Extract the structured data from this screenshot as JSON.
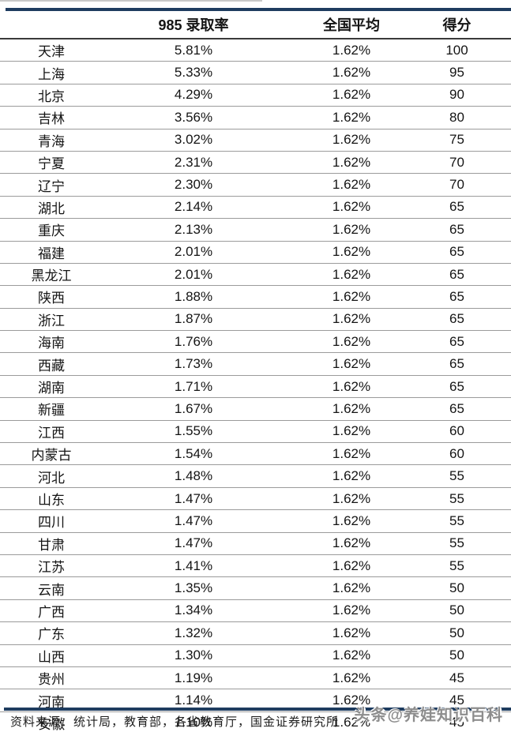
{
  "colors": {
    "accent_rule": "#1e3c5f",
    "header_divider": "#3a3a3a",
    "row_divider": "#9b9b9b",
    "text": "#141414",
    "watermark": "#8d8d8d"
  },
  "chart_data": {
    "type": "table",
    "columns": [
      "",
      "985 录取率",
      "全国平均",
      "得分"
    ],
    "rows": [
      {
        "province": "天津",
        "rate": "5.81%",
        "avg": "1.62%",
        "score": "100"
      },
      {
        "province": "上海",
        "rate": "5.33%",
        "avg": "1.62%",
        "score": "95"
      },
      {
        "province": "北京",
        "rate": "4.29%",
        "avg": "1.62%",
        "score": "90"
      },
      {
        "province": "吉林",
        "rate": "3.56%",
        "avg": "1.62%",
        "score": "80"
      },
      {
        "province": "青海",
        "rate": "3.02%",
        "avg": "1.62%",
        "score": "75"
      },
      {
        "province": "宁夏",
        "rate": "2.31%",
        "avg": "1.62%",
        "score": "70"
      },
      {
        "province": "辽宁",
        "rate": "2.30%",
        "avg": "1.62%",
        "score": "70"
      },
      {
        "province": "湖北",
        "rate": "2.14%",
        "avg": "1.62%",
        "score": "65"
      },
      {
        "province": "重庆",
        "rate": "2.13%",
        "avg": "1.62%",
        "score": "65"
      },
      {
        "province": "福建",
        "rate": "2.01%",
        "avg": "1.62%",
        "score": "65"
      },
      {
        "province": "黑龙江",
        "rate": "2.01%",
        "avg": "1.62%",
        "score": "65"
      },
      {
        "province": "陕西",
        "rate": "1.88%",
        "avg": "1.62%",
        "score": "65"
      },
      {
        "province": "浙江",
        "rate": "1.87%",
        "avg": "1.62%",
        "score": "65"
      },
      {
        "province": "海南",
        "rate": "1.76%",
        "avg": "1.62%",
        "score": "65"
      },
      {
        "province": "西藏",
        "rate": "1.73%",
        "avg": "1.62%",
        "score": "65"
      },
      {
        "province": "湖南",
        "rate": "1.71%",
        "avg": "1.62%",
        "score": "65"
      },
      {
        "province": "新疆",
        "rate": "1.67%",
        "avg": "1.62%",
        "score": "65"
      },
      {
        "province": "江西",
        "rate": "1.55%",
        "avg": "1.62%",
        "score": "60"
      },
      {
        "province": "内蒙古",
        "rate": "1.54%",
        "avg": "1.62%",
        "score": "60"
      },
      {
        "province": "河北",
        "rate": "1.48%",
        "avg": "1.62%",
        "score": "55"
      },
      {
        "province": "山东",
        "rate": "1.47%",
        "avg": "1.62%",
        "score": "55"
      },
      {
        "province": "四川",
        "rate": "1.47%",
        "avg": "1.62%",
        "score": "55"
      },
      {
        "province": "甘肃",
        "rate": "1.47%",
        "avg": "1.62%",
        "score": "55"
      },
      {
        "province": "江苏",
        "rate": "1.41%",
        "avg": "1.62%",
        "score": "55"
      },
      {
        "province": "云南",
        "rate": "1.35%",
        "avg": "1.62%",
        "score": "50"
      },
      {
        "province": "广西",
        "rate": "1.34%",
        "avg": "1.62%",
        "score": "50"
      },
      {
        "province": "广东",
        "rate": "1.32%",
        "avg": "1.62%",
        "score": "50"
      },
      {
        "province": "山西",
        "rate": "1.30%",
        "avg": "1.62%",
        "score": "50"
      },
      {
        "province": "贵州",
        "rate": "1.19%",
        "avg": "1.62%",
        "score": "45"
      },
      {
        "province": "河南",
        "rate": "1.14%",
        "avg": "1.62%",
        "score": "45"
      },
      {
        "province": "安徽",
        "rate": "1.10%",
        "avg": "1.62%",
        "score": "45"
      }
    ]
  },
  "footer": {
    "source": "资料来源：统计局，教育部，各省教育厅，国金证券研究所"
  },
  "watermark": {
    "text": "头条@养娃知识百科"
  }
}
